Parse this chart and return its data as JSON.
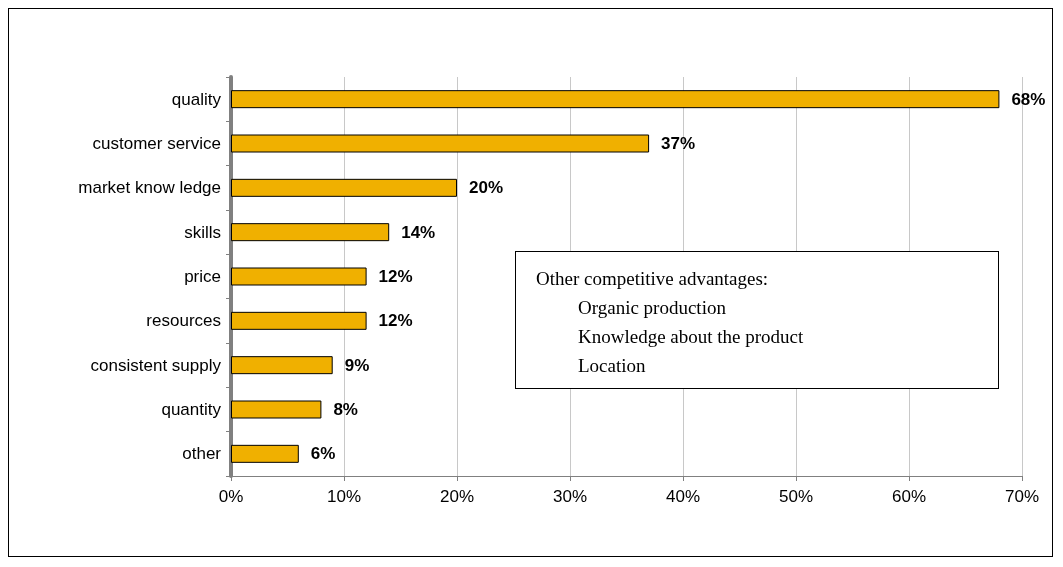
{
  "chart_data": {
    "type": "bar",
    "orientation": "horizontal",
    "categories": [
      "quality",
      "customer service",
      "market know ledge",
      "skills",
      "price",
      "resources",
      "consistent supply",
      "quantity",
      "other"
    ],
    "values": [
      68,
      37,
      20,
      14,
      12,
      12,
      9,
      8,
      6
    ],
    "value_labels": [
      "68%",
      "37%",
      "20%",
      "14%",
      "12%",
      "12%",
      "9%",
      "8%",
      "6%"
    ],
    "color": "#f0b000",
    "xlim": [
      0,
      70
    ],
    "xticks": [
      {
        "value": 0,
        "label": "0%"
      },
      {
        "value": 10,
        "label": "10%"
      },
      {
        "value": 20,
        "label": "20%"
      },
      {
        "value": 30,
        "label": "30%"
      },
      {
        "value": 40,
        "label": "40%"
      },
      {
        "value": 50,
        "label": "50%"
      },
      {
        "value": 60,
        "label": "60%"
      },
      {
        "value": 70,
        "label": "70%"
      }
    ],
    "grid": "x",
    "annotations": [
      "Other competitive advantages:",
      "Organic production",
      "Knowledge about the product",
      "Location"
    ]
  }
}
